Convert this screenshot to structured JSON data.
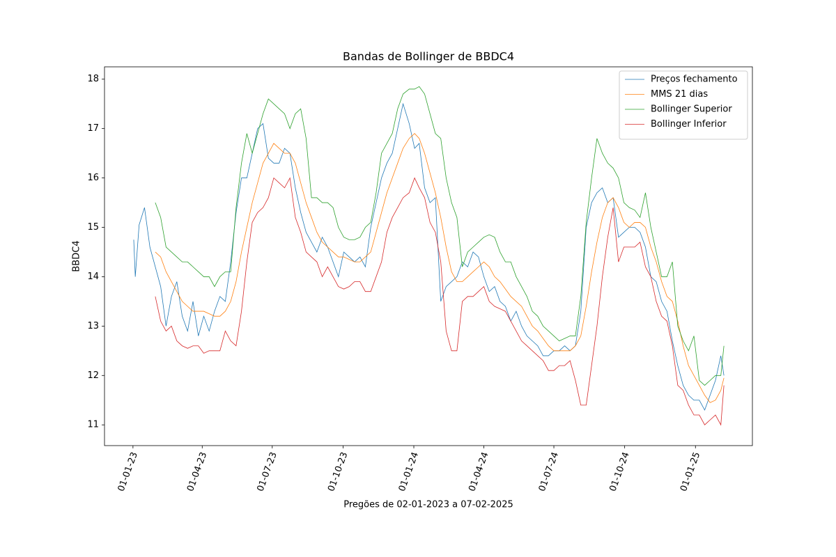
{
  "chart_data": {
    "type": "line",
    "title": "Bandas de Bollinger de BBDC4",
    "xlabel": "Pregões de 02-01-2023 a 07-02-2025",
    "ylabel": "BBDC4",
    "legend": "upper right",
    "x": [
      "2023-01-02",
      "2023-01-04",
      "2023-01-09",
      "2023-01-16",
      "2023-01-23",
      "2023-01-30",
      "2023-02-06",
      "2023-02-13",
      "2023-02-20",
      "2023-02-27",
      "2023-03-06",
      "2023-03-13",
      "2023-03-20",
      "2023-03-27",
      "2023-04-03",
      "2023-04-10",
      "2023-04-17",
      "2023-04-24",
      "2023-05-01",
      "2023-05-08",
      "2023-05-15",
      "2023-05-22",
      "2023-05-29",
      "2023-06-05",
      "2023-06-12",
      "2023-06-19",
      "2023-06-26",
      "2023-07-03",
      "2023-07-10",
      "2023-07-17",
      "2023-07-24",
      "2023-07-31",
      "2023-08-07",
      "2023-08-14",
      "2023-08-21",
      "2023-08-28",
      "2023-09-04",
      "2023-09-11",
      "2023-09-18",
      "2023-09-25",
      "2023-10-02",
      "2023-10-09",
      "2023-10-16",
      "2023-10-23",
      "2023-10-30",
      "2023-11-06",
      "2023-11-13",
      "2023-11-20",
      "2023-11-27",
      "2023-12-04",
      "2023-12-11",
      "2023-12-18",
      "2023-12-26",
      "2024-01-02",
      "2024-01-08",
      "2024-01-15",
      "2024-01-22",
      "2024-01-29",
      "2024-02-05",
      "2024-02-12",
      "2024-02-19",
      "2024-02-26",
      "2024-03-04",
      "2024-03-11",
      "2024-03-18",
      "2024-03-25",
      "2024-04-01",
      "2024-04-08",
      "2024-04-15",
      "2024-04-22",
      "2024-04-29",
      "2024-05-06",
      "2024-05-13",
      "2024-05-20",
      "2024-05-27",
      "2024-06-03",
      "2024-06-10",
      "2024-06-17",
      "2024-06-24",
      "2024-07-01",
      "2024-07-08",
      "2024-07-15",
      "2024-07-22",
      "2024-07-29",
      "2024-08-05",
      "2024-08-12",
      "2024-08-19",
      "2024-08-26",
      "2024-09-02",
      "2024-09-09",
      "2024-09-16",
      "2024-09-23",
      "2024-09-30",
      "2024-10-07",
      "2024-10-14",
      "2024-10-21",
      "2024-10-28",
      "2024-11-04",
      "2024-11-11",
      "2024-11-18",
      "2024-11-25",
      "2024-12-02",
      "2024-12-09",
      "2024-12-16",
      "2024-12-23",
      "2024-12-30",
      "2025-01-06",
      "2025-01-13",
      "2025-01-20",
      "2025-01-27",
      "2025-02-03",
      "2025-02-07"
    ],
    "series": [
      {
        "name": "Preços fechamento",
        "color": "#1f77b4",
        "values": [
          14.75,
          14.0,
          15.05,
          15.4,
          14.6,
          14.2,
          13.8,
          13.0,
          13.6,
          13.9,
          13.2,
          12.9,
          13.5,
          12.8,
          13.2,
          12.9,
          13.3,
          13.6,
          13.5,
          14.3,
          15.3,
          16.0,
          16.0,
          16.5,
          17.0,
          17.1,
          16.4,
          16.3,
          16.3,
          16.6,
          16.5,
          15.8,
          15.3,
          14.9,
          14.7,
          14.5,
          14.8,
          14.6,
          14.3,
          14.0,
          14.5,
          14.4,
          14.3,
          14.4,
          14.2,
          15.0,
          15.5,
          16.0,
          16.3,
          16.5,
          17.0,
          17.5,
          17.1,
          16.6,
          16.7,
          15.8,
          15.5,
          15.6,
          13.5,
          13.8,
          13.9,
          14.0,
          14.3,
          14.2,
          14.5,
          14.4,
          14.0,
          13.7,
          13.8,
          13.5,
          13.4,
          13.1,
          13.3,
          13.0,
          12.8,
          12.7,
          12.6,
          12.4,
          12.4,
          12.5,
          12.5,
          12.6,
          12.5,
          12.6,
          13.3,
          15.0,
          15.5,
          15.7,
          15.8,
          15.5,
          15.6,
          14.8,
          14.9,
          15.0,
          15.0,
          14.9,
          14.6,
          14.0,
          13.9,
          13.5,
          13.3,
          12.7,
          12.2,
          11.8,
          11.6,
          11.5,
          11.5,
          11.3,
          11.6,
          11.9,
          12.4,
          12.0
        ]
      },
      {
        "name": "MMS 21 dias",
        "color": "#ff7f0e",
        "values": [
          null,
          null,
          null,
          null,
          null,
          14.5,
          14.4,
          14.1,
          13.9,
          13.7,
          13.5,
          13.4,
          13.3,
          13.3,
          13.3,
          13.25,
          13.2,
          13.2,
          13.3,
          13.5,
          13.9,
          14.5,
          15.0,
          15.5,
          15.9,
          16.3,
          16.5,
          16.7,
          16.6,
          16.5,
          16.5,
          16.3,
          15.9,
          15.5,
          15.2,
          14.9,
          14.7,
          14.6,
          14.5,
          14.4,
          14.4,
          14.35,
          14.3,
          14.3,
          14.4,
          14.5,
          14.9,
          15.3,
          15.7,
          16.0,
          16.3,
          16.6,
          16.8,
          16.9,
          16.8,
          16.5,
          16.1,
          15.7,
          15.2,
          14.6,
          14.1,
          13.9,
          13.9,
          14.0,
          14.1,
          14.2,
          14.3,
          14.2,
          14.0,
          13.9,
          13.75,
          13.6,
          13.5,
          13.4,
          13.2,
          13.0,
          12.9,
          12.75,
          12.6,
          12.5,
          12.5,
          12.5,
          12.5,
          12.6,
          12.8,
          13.4,
          14.1,
          14.7,
          15.2,
          15.5,
          15.6,
          15.4,
          15.1,
          15.0,
          15.1,
          15.1,
          15.0,
          14.6,
          14.3,
          13.9,
          13.6,
          13.5,
          13.1,
          12.6,
          12.2,
          12.0,
          11.8,
          11.6,
          11.45,
          11.5,
          11.7,
          11.95
        ]
      },
      {
        "name": "Bollinger Superior",
        "color": "#2ca02c",
        "values": [
          null,
          null,
          null,
          null,
          null,
          15.5,
          15.2,
          14.6,
          14.5,
          14.4,
          14.3,
          14.3,
          14.2,
          14.1,
          14.0,
          14.0,
          13.8,
          14.0,
          14.1,
          14.1,
          15.4,
          16.3,
          16.9,
          16.5,
          16.9,
          17.3,
          17.6,
          17.5,
          17.4,
          17.3,
          17.0,
          17.3,
          17.4,
          16.8,
          15.6,
          15.6,
          15.5,
          15.5,
          15.4,
          15.0,
          14.8,
          14.75,
          14.75,
          14.8,
          15.0,
          15.1,
          15.7,
          16.5,
          16.7,
          16.9,
          17.4,
          17.7,
          17.8,
          17.8,
          17.85,
          17.7,
          17.3,
          16.9,
          16.8,
          16.0,
          15.5,
          15.2,
          14.2,
          14.5,
          14.6,
          14.7,
          14.8,
          14.85,
          14.8,
          14.5,
          14.3,
          14.3,
          14.0,
          13.8,
          13.6,
          13.3,
          13.2,
          13.0,
          12.9,
          12.8,
          12.7,
          12.75,
          12.8,
          12.8,
          13.6,
          15.1,
          16.0,
          16.8,
          16.5,
          16.3,
          16.2,
          16.0,
          15.5,
          15.4,
          15.35,
          15.2,
          15.7,
          15.0,
          14.5,
          14.0,
          14.0,
          14.3,
          13.0,
          12.7,
          12.5,
          12.8,
          11.9,
          11.8,
          11.9,
          12.0,
          12.0,
          12.6
        ]
      },
      {
        "name": "Bollinger Inferior",
        "color": "#d62728",
        "values": [
          null,
          null,
          null,
          null,
          null,
          13.6,
          13.1,
          12.9,
          13.0,
          12.7,
          12.6,
          12.55,
          12.6,
          12.6,
          12.45,
          12.5,
          12.5,
          12.5,
          12.9,
          12.7,
          12.6,
          13.3,
          14.3,
          15.1,
          15.3,
          15.4,
          15.6,
          16.0,
          15.9,
          15.8,
          16.0,
          15.2,
          14.9,
          14.5,
          14.4,
          14.3,
          14.0,
          14.2,
          14.0,
          13.8,
          13.75,
          13.8,
          13.9,
          13.9,
          13.7,
          13.7,
          14.0,
          14.3,
          14.9,
          15.2,
          15.4,
          15.6,
          15.7,
          16.0,
          15.8,
          15.6,
          15.1,
          14.9,
          14.3,
          12.9,
          12.5,
          12.5,
          13.5,
          13.6,
          13.6,
          13.7,
          13.8,
          13.5,
          13.4,
          13.35,
          13.3,
          13.1,
          12.9,
          12.7,
          12.6,
          12.5,
          12.4,
          12.3,
          12.1,
          12.1,
          12.2,
          12.2,
          12.3,
          11.9,
          11.4,
          11.4,
          12.2,
          13.0,
          14.0,
          14.8,
          15.4,
          14.3,
          14.6,
          14.6,
          14.6,
          14.7,
          14.2,
          14.0,
          13.5,
          13.2,
          13.1,
          12.6,
          11.8,
          11.7,
          11.4,
          11.2,
          11.2,
          11.0,
          11.1,
          11.2,
          11.0,
          11.8
        ]
      }
    ],
    "xlim": [
      "2022-11-25",
      "2025-03-16"
    ],
    "xticks": [
      {
        "value": "2023-01-01",
        "label": "01-01-23"
      },
      {
        "value": "2023-04-01",
        "label": "01-04-23"
      },
      {
        "value": "2023-07-01",
        "label": "01-07-23"
      },
      {
        "value": "2023-10-01",
        "label": "01-10-23"
      },
      {
        "value": "2024-01-01",
        "label": "01-01-24"
      },
      {
        "value": "2024-04-01",
        "label": "01-04-24"
      },
      {
        "value": "2024-07-01",
        "label": "01-07-24"
      },
      {
        "value": "2024-10-01",
        "label": "01-10-24"
      },
      {
        "value": "2025-01-01",
        "label": "01-01-25"
      }
    ],
    "ylim": [
      10.58,
      18.25
    ],
    "yticks": [
      11,
      12,
      13,
      14,
      15,
      16,
      17,
      18
    ],
    "grid": false
  }
}
